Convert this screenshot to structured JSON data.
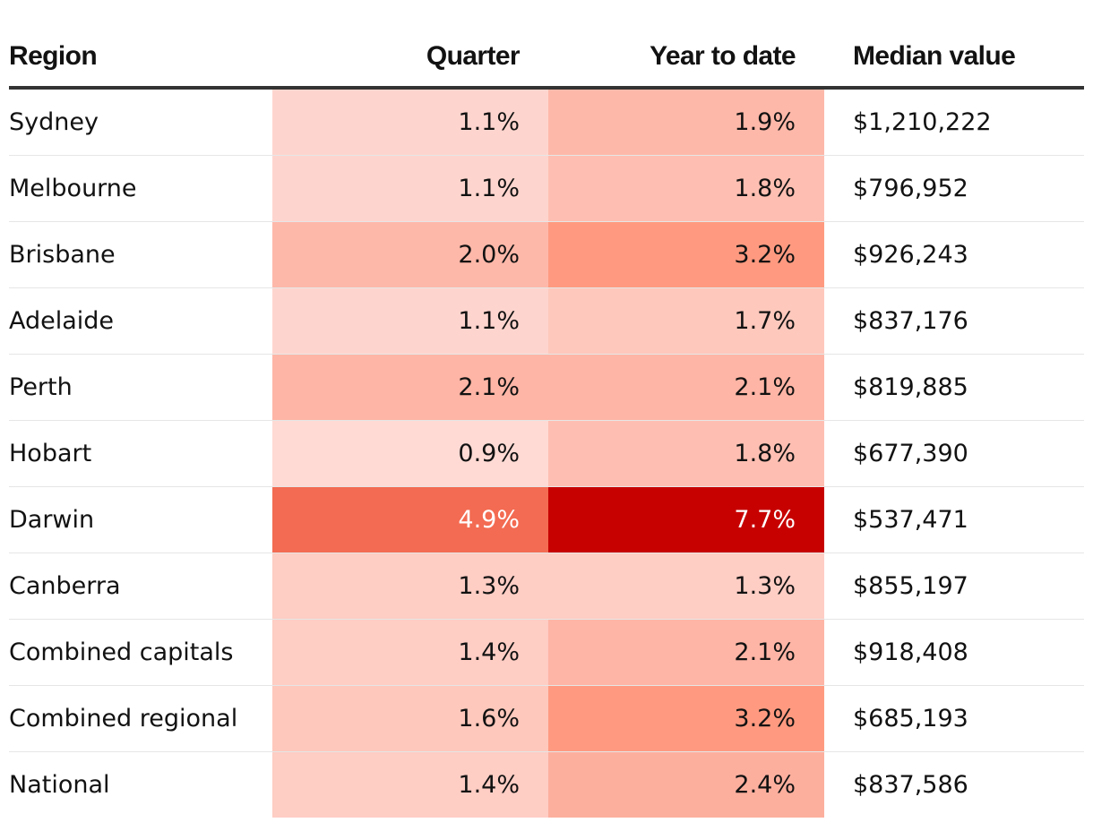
{
  "chart_data": {
    "type": "table",
    "columns": [
      "Region",
      "Quarter",
      "Year to date",
      "Median value"
    ],
    "rows": [
      {
        "region": "Sydney",
        "quarter": "1.1%",
        "ytd": "1.9%",
        "median": "$1,210,222",
        "quarter_value": 1.1,
        "ytd_value": 1.9
      },
      {
        "region": "Melbourne",
        "quarter": "1.1%",
        "ytd": "1.8%",
        "median": "$796,952",
        "quarter_value": 1.1,
        "ytd_value": 1.8
      },
      {
        "region": "Brisbane",
        "quarter": "2.0%",
        "ytd": "3.2%",
        "median": "$926,243",
        "quarter_value": 2.0,
        "ytd_value": 3.2
      },
      {
        "region": "Adelaide",
        "quarter": "1.1%",
        "ytd": "1.7%",
        "median": "$837,176",
        "quarter_value": 1.1,
        "ytd_value": 1.7
      },
      {
        "region": "Perth",
        "quarter": "2.1%",
        "ytd": "2.1%",
        "median": "$819,885",
        "quarter_value": 2.1,
        "ytd_value": 2.1
      },
      {
        "region": "Hobart",
        "quarter": "0.9%",
        "ytd": "1.8%",
        "median": "$677,390",
        "quarter_value": 0.9,
        "ytd_value": 1.8
      },
      {
        "region": "Darwin",
        "quarter": "4.9%",
        "ytd": "7.7%",
        "median": "$537,471",
        "quarter_value": 4.9,
        "ytd_value": 7.7
      },
      {
        "region": "Canberra",
        "quarter": "1.3%",
        "ytd": "1.3%",
        "median": "$855,197",
        "quarter_value": 1.3,
        "ytd_value": 1.3
      },
      {
        "region": "Combined capitals",
        "quarter": "1.4%",
        "ytd": "2.1%",
        "median": "$918,408",
        "quarter_value": 1.4,
        "ytd_value": 2.1
      },
      {
        "region": "Combined regional",
        "quarter": "1.6%",
        "ytd": "3.2%",
        "median": "$685,193",
        "quarter_value": 1.6,
        "ytd_value": 3.2
      },
      {
        "region": "National",
        "quarter": "1.4%",
        "ytd": "2.4%",
        "median": "$837,586",
        "quarter_value": 1.4,
        "ytd_value": 2.4
      }
    ]
  },
  "colors": {
    "scale": [
      {
        "max": 1.0,
        "color": "#ffdad4"
      },
      {
        "max": 1.2,
        "color": "#fed5ce"
      },
      {
        "max": 1.5,
        "color": "#fecdc4"
      },
      {
        "max": 1.75,
        "color": "#fec8bc"
      },
      {
        "max": 1.85,
        "color": "#febfb2"
      },
      {
        "max": 2.05,
        "color": "#feb8a9"
      },
      {
        "max": 2.2,
        "color": "#feb5a5"
      },
      {
        "max": 2.5,
        "color": "#fdaf9e"
      },
      {
        "max": 3.5,
        "color": "#ff9a80"
      },
      {
        "max": 5.0,
        "color": "#f36b52"
      },
      {
        "max": 100,
        "color": "#c70000"
      }
    ],
    "dark_text_threshold": 4.0
  }
}
